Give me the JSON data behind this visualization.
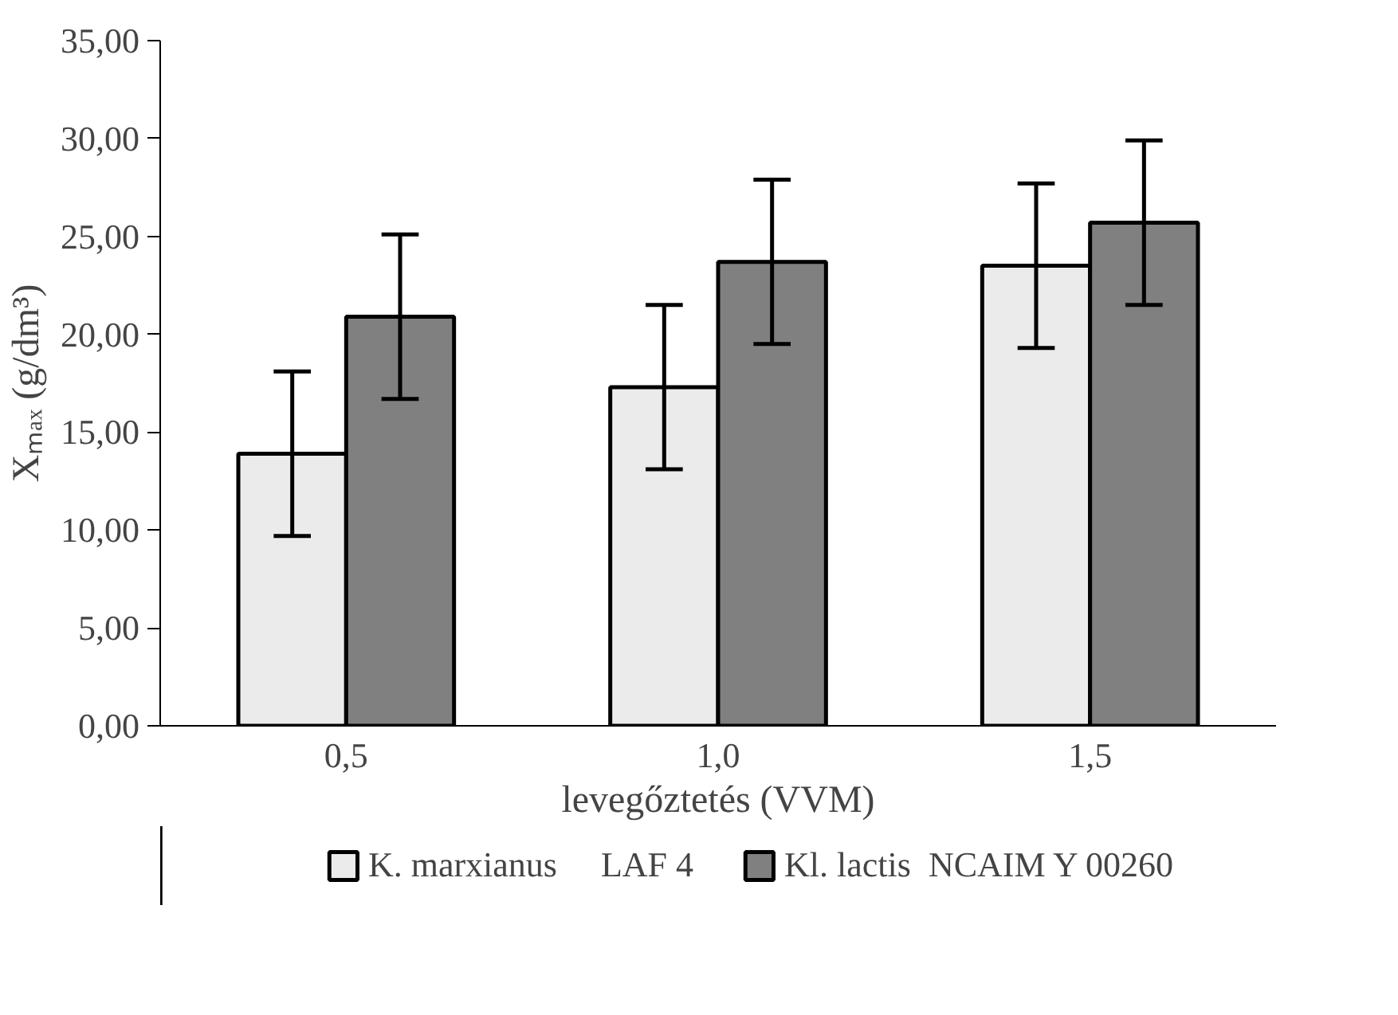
{
  "chart_data": {
    "type": "bar",
    "xlabel": "levegőztetés (VVM)",
    "ylabel": "Xₘₐₓ (g/dm³)",
    "categories": [
      "0,5",
      "1,0",
      "1,5"
    ],
    "series": [
      {
        "name": "K. marxianus     LAF 4",
        "color": "#ebebeb",
        "values": [
          13.9,
          17.3,
          23.5
        ],
        "errors": [
          4.2,
          4.2,
          4.2
        ]
      },
      {
        "name": "Kl. lactis  NCAIM Y 00260",
        "color": "#808080",
        "values": [
          20.9,
          23.7,
          25.7
        ],
        "errors": [
          4.2,
          4.2,
          4.2
        ]
      }
    ],
    "ylim": [
      0,
      35
    ],
    "yticks": [
      {
        "value": 0,
        "label": "0,00"
      },
      {
        "value": 5,
        "label": "5,00"
      },
      {
        "value": 10,
        "label": "10,00"
      },
      {
        "value": 15,
        "label": "15,00"
      },
      {
        "value": 20,
        "label": "20,00"
      },
      {
        "value": 25,
        "label": "25,00"
      },
      {
        "value": 30,
        "label": "30,00"
      },
      {
        "value": 35,
        "label": "35,00"
      }
    ],
    "legend": "bottom",
    "grid": false
  }
}
